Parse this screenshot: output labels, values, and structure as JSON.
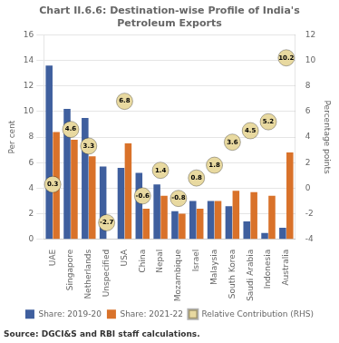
{
  "chart_data": {
    "type": "bar",
    "title": "Chart II.6.6: Destination-wise Profile of India's\nPetroleum Exports",
    "categories": [
      "UAE",
      "Singapore",
      "Netherlands",
      "Unspecified",
      "USA",
      "China",
      "Nepal",
      "Mozambique",
      "Israel",
      "Malaysia",
      "South Korea",
      "Saudi Arabia",
      "Indonesia",
      "Australia"
    ],
    "series": [
      {
        "name": "Share: 2019-20",
        "color": "#3f5f9e",
        "values": [
          13.6,
          10.2,
          9.5,
          5.7,
          5.6,
          5.2,
          4.3,
          2.2,
          3.0,
          3.0,
          2.6,
          1.4,
          0.5,
          0.9
        ]
      },
      {
        "name": "Share: 2021-22",
        "color": "#d9722a",
        "values": [
          8.4,
          7.8,
          6.5,
          0.0,
          7.5,
          2.4,
          3.4,
          2.0,
          2.4,
          3.0,
          3.8,
          3.7,
          3.4,
          6.8
        ]
      },
      {
        "name": "Relative Contribution (RHS)",
        "type": "scatter",
        "axis": "y2",
        "marker": "circle",
        "color": "#e8d9a0",
        "data_labels": true,
        "values": [
          0.3,
          4.6,
          3.3,
          -2.7,
          6.8,
          -0.6,
          1.4,
          -0.8,
          0.8,
          1.8,
          3.6,
          4.5,
          5.2,
          10.2
        ]
      }
    ],
    "ylabel": "Per cent",
    "y2label": "Percentage points",
    "ylim": [
      0,
      16
    ],
    "yticks": [
      0,
      2,
      4,
      6,
      8,
      10,
      12,
      14,
      16
    ],
    "y2lim": [
      -4,
      12
    ],
    "y2ticks": [
      -4,
      -2,
      0,
      2,
      4,
      6,
      8,
      10,
      12
    ],
    "grid": true,
    "legend": "bottom",
    "annotations": [
      "Source: DGCI&S and RBI staff calculations."
    ]
  }
}
